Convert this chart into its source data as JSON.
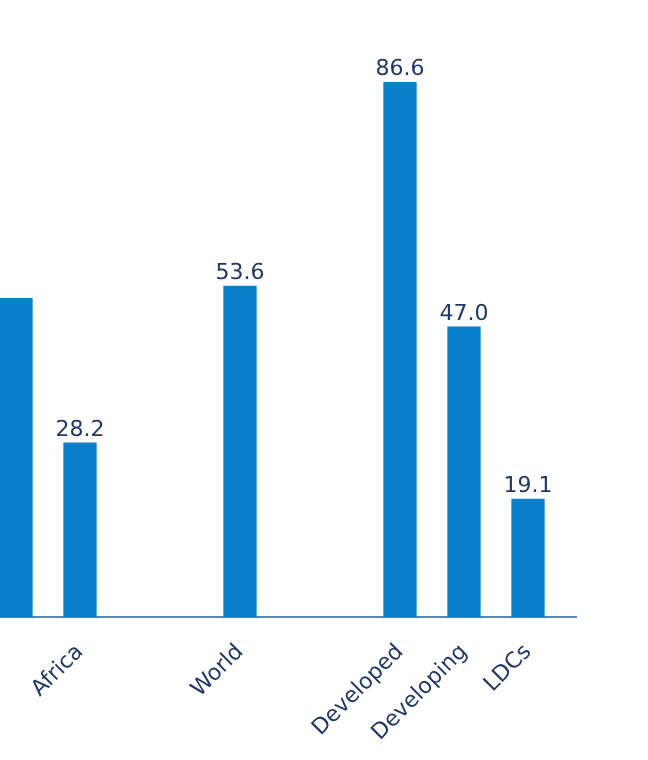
{
  "chart_data": {
    "type": "bar",
    "categories": [
      null,
      null,
      "Africa",
      null,
      null,
      null,
      null,
      "World",
      null,
      null,
      null,
      null,
      "Developed",
      null,
      "Developing",
      null,
      "LDCs",
      null
    ],
    "values": [
      51.6,
      null,
      28.2,
      null,
      null,
      null,
      null,
      53.6,
      null,
      null,
      null,
      null,
      86.6,
      null,
      47.0,
      null,
      19.1,
      null
    ],
    "value_labels": [
      null,
      null,
      "28.2",
      null,
      null,
      null,
      null,
      "53.6",
      null,
      null,
      null,
      null,
      "86.6",
      null,
      "47.0",
      null,
      "19.1",
      null
    ],
    "color": "#0a7fcb",
    "grid": false,
    "legend": false
  }
}
